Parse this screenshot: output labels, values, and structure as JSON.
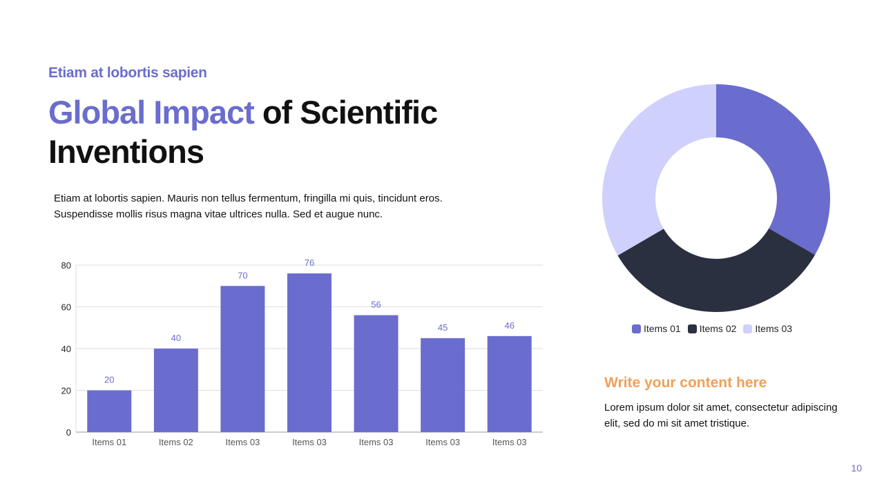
{
  "colors": {
    "accent": "#6a6dcd",
    "dark": "#2b3040",
    "light": "#cfd0fb",
    "orange": "#f0a057",
    "grid": "#dddde4",
    "tick": "#555555"
  },
  "header": {
    "subtitle": "Etiam at lobortis sapien",
    "title_accent": "Global Impact",
    "title_rest": " of Scientific Inventions"
  },
  "intro": {
    "text": "Etiam at lobortis sapien. Mauris non tellus fermentum, fringilla mi quis, tincidunt eros. Suspendisse mollis risus magna vitae ultrices nulla. Sed et augue nunc."
  },
  "chart_data": [
    {
      "type": "bar",
      "title": "",
      "xlabel": "",
      "ylabel": "",
      "categories": [
        "Items 01",
        "Items 02",
        "Items 03",
        "Items 03",
        "Items 03",
        "Items 03",
        "Items 03"
      ],
      "values": [
        20,
        40,
        70,
        76,
        56,
        45,
        46
      ],
      "ylim": [
        0,
        80
      ],
      "yticks": [
        0,
        20,
        40,
        60,
        80
      ],
      "grid": true
    },
    {
      "type": "pie",
      "title": "",
      "donut": true,
      "labels": [
        "Items 01",
        "Items 02",
        "Items 03"
      ],
      "values": [
        33.3,
        33.3,
        33.4
      ],
      "legend": "bottom"
    }
  ],
  "legend": {
    "items": [
      "Items 01",
      "Items 02",
      "Items 03"
    ]
  },
  "content": {
    "heading": "Write your content here",
    "text": "Lorem ipsum dolor sit amet, consectetur adipiscing elit, sed do mi sit amet tristique."
  },
  "page": {
    "number": "10"
  }
}
